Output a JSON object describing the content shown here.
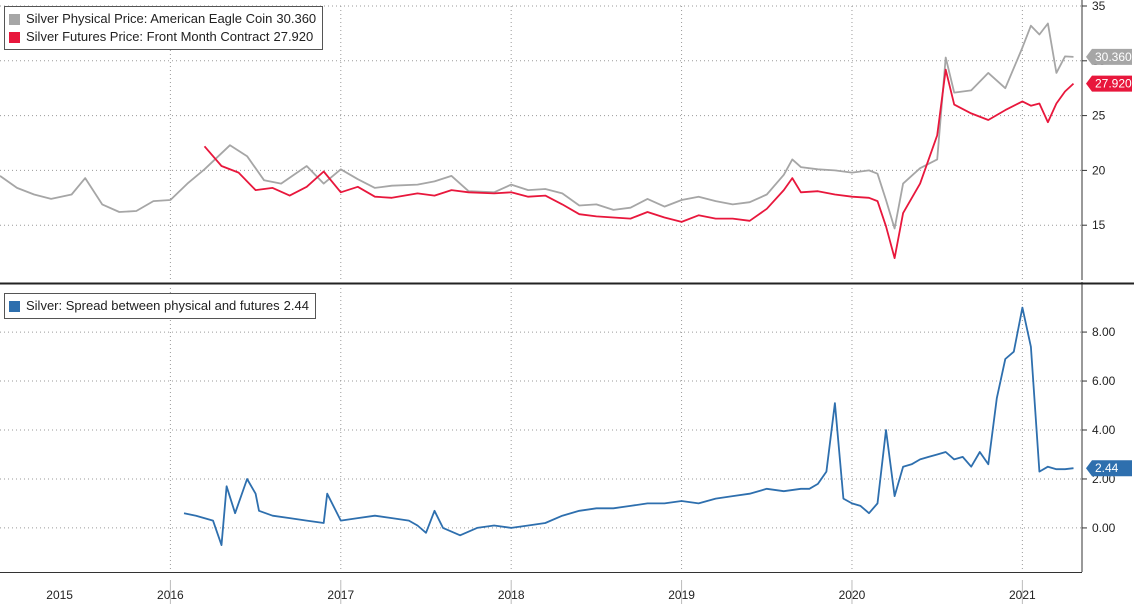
{
  "chart_data": [
    {
      "type": "line",
      "ylim": [
        10,
        35
      ],
      "yticks": [
        15,
        20,
        25,
        30,
        35
      ],
      "grid": true,
      "legend_position": "top-left",
      "series": [
        {
          "name": "Silver Physical Price: American Eagle Coin",
          "last_label": "30.360",
          "color": "#a6a6a6",
          "x": [
            2015.0,
            2015.1,
            2015.2,
            2015.3,
            2015.42,
            2015.5,
            2015.6,
            2015.7,
            2015.8,
            2015.9,
            2016.0,
            2016.1,
            2016.2,
            2016.35,
            2016.45,
            2016.55,
            2016.65,
            2016.8,
            2016.9,
            2017.0,
            2017.1,
            2017.2,
            2017.3,
            2017.45,
            2017.55,
            2017.65,
            2017.75,
            2017.9,
            2018.0,
            2018.1,
            2018.2,
            2018.3,
            2018.4,
            2018.5,
            2018.6,
            2018.7,
            2018.8,
            2018.9,
            2019.0,
            2019.1,
            2019.2,
            2019.3,
            2019.4,
            2019.5,
            2019.6,
            2019.65,
            2019.7,
            2019.8,
            2019.9,
            2020.0,
            2020.1,
            2020.15,
            2020.2,
            2020.25,
            2020.3,
            2020.4,
            2020.5,
            2020.55,
            2020.6,
            2020.7,
            2020.8,
            2020.9,
            2021.0,
            2021.05,
            2021.1,
            2021.15,
            2021.2,
            2021.25,
            2021.3
          ],
          "values": [
            19.5,
            18.4,
            17.8,
            17.4,
            17.8,
            19.3,
            16.9,
            16.2,
            16.3,
            17.2,
            17.3,
            18.8,
            20.1,
            22.3,
            21.3,
            19.1,
            18.8,
            20.4,
            18.8,
            20.1,
            19.2,
            18.4,
            18.6,
            18.7,
            19.0,
            19.5,
            18.1,
            18.0,
            18.7,
            18.2,
            18.3,
            17.9,
            16.8,
            16.9,
            16.4,
            16.6,
            17.4,
            16.7,
            17.3,
            17.6,
            17.2,
            16.9,
            17.1,
            17.8,
            19.6,
            21.0,
            20.3,
            20.1,
            20.0,
            19.8,
            20.0,
            19.7,
            17.3,
            14.7,
            18.8,
            20.2,
            21.0,
            30.3,
            27.1,
            27.3,
            28.9,
            27.5,
            31.2,
            33.2,
            32.4,
            33.4,
            28.9,
            30.4,
            30.36
          ]
        },
        {
          "name": "Silver Futures Price: Front Month Contract",
          "last_label": "27.920",
          "color": "#e8173c",
          "x": [
            2016.2,
            2016.3,
            2016.4,
            2016.5,
            2016.6,
            2016.7,
            2016.8,
            2016.9,
            2017.0,
            2017.1,
            2017.2,
            2017.3,
            2017.45,
            2017.55,
            2017.65,
            2017.75,
            2017.9,
            2018.0,
            2018.1,
            2018.2,
            2018.3,
            2018.4,
            2018.5,
            2018.6,
            2018.7,
            2018.8,
            2018.9,
            2019.0,
            2019.1,
            2019.2,
            2019.3,
            2019.4,
            2019.5,
            2019.6,
            2019.65,
            2019.7,
            2019.8,
            2019.9,
            2020.0,
            2020.1,
            2020.15,
            2020.2,
            2020.25,
            2020.3,
            2020.4,
            2020.5,
            2020.55,
            2020.6,
            2020.7,
            2020.8,
            2020.9,
            2021.0,
            2021.05,
            2021.1,
            2021.15,
            2021.2,
            2021.25,
            2021.3
          ],
          "values": [
            22.2,
            20.4,
            19.8,
            18.2,
            18.4,
            17.7,
            18.5,
            19.9,
            18.0,
            18.5,
            17.6,
            17.5,
            17.9,
            17.7,
            18.2,
            18.0,
            17.9,
            18.0,
            17.6,
            17.7,
            16.9,
            16.0,
            15.8,
            15.7,
            15.6,
            16.2,
            15.7,
            15.3,
            15.9,
            15.6,
            15.6,
            15.4,
            16.5,
            18.2,
            19.3,
            18.0,
            18.1,
            17.8,
            17.6,
            17.5,
            17.2,
            14.9,
            12.0,
            16.1,
            18.8,
            23.2,
            29.2,
            26.0,
            25.2,
            24.6,
            25.5,
            26.3,
            25.9,
            26.1,
            24.4,
            26.1,
            27.2,
            27.92
          ]
        }
      ]
    },
    {
      "type": "line",
      "ylim": [
        -1.8,
        9.8
      ],
      "yticks": [
        0.0,
        2.0,
        4.0,
        6.0,
        8.0
      ],
      "ytick_labels": [
        "0.00",
        "2.00",
        "4.00",
        "6.00",
        "8.00"
      ],
      "grid": true,
      "legend_position": "top-left",
      "series": [
        {
          "name": "Silver: Spread between physical and futures",
          "last_label": "2.44",
          "color": "#2e6fae",
          "x": [
            2016.08,
            2016.15,
            2016.25,
            2016.3,
            2016.33,
            2016.38,
            2016.45,
            2016.5,
            2016.52,
            2016.6,
            2016.7,
            2016.8,
            2016.9,
            2016.92,
            2017.0,
            2017.1,
            2017.2,
            2017.3,
            2017.4,
            2017.45,
            2017.5,
            2017.55,
            2017.6,
            2017.7,
            2017.8,
            2017.9,
            2018.0,
            2018.1,
            2018.2,
            2018.3,
            2018.4,
            2018.5,
            2018.6,
            2018.7,
            2018.8,
            2018.9,
            2019.0,
            2019.1,
            2019.2,
            2019.3,
            2019.4,
            2019.5,
            2019.6,
            2019.7,
            2019.75,
            2019.8,
            2019.85,
            2019.9,
            2019.95,
            2020.0,
            2020.05,
            2020.1,
            2020.15,
            2020.2,
            2020.25,
            2020.3,
            2020.35,
            2020.4,
            2020.45,
            2020.5,
            2020.55,
            2020.6,
            2020.65,
            2020.7,
            2020.75,
            2020.8,
            2020.85,
            2020.9,
            2020.95,
            2021.0,
            2021.05,
            2021.1,
            2021.15,
            2021.2,
            2021.25,
            2021.3
          ],
          "values": [
            0.6,
            0.5,
            0.3,
            -0.7,
            1.7,
            0.6,
            2.0,
            1.4,
            0.7,
            0.5,
            0.4,
            0.3,
            0.2,
            1.4,
            0.3,
            0.4,
            0.5,
            0.4,
            0.3,
            0.1,
            -0.2,
            0.7,
            0.0,
            -0.3,
            0.0,
            0.1,
            0.0,
            0.1,
            0.2,
            0.5,
            0.7,
            0.8,
            0.8,
            0.9,
            1.0,
            1.0,
            1.1,
            1.0,
            1.2,
            1.3,
            1.4,
            1.6,
            1.5,
            1.6,
            1.6,
            1.8,
            2.3,
            5.1,
            1.2,
            1.0,
            0.9,
            0.6,
            1.0,
            4.0,
            1.3,
            2.5,
            2.6,
            2.8,
            2.9,
            3.0,
            3.1,
            2.8,
            2.9,
            2.5,
            3.1,
            2.6,
            5.3,
            6.9,
            7.2,
            9.0,
            7.4,
            2.3,
            2.5,
            2.4,
            2.4,
            2.44
          ]
        }
      ]
    }
  ],
  "x_axis": {
    "range": [
      2015.0,
      2021.35
    ],
    "boundaries": [
      2016.0,
      2017.0,
      2018.0,
      2019.0,
      2020.0,
      2021.0
    ],
    "year_labels": [
      {
        "text": "2015",
        "mid": 2015.35
      },
      {
        "text": "2016",
        "mid": 2016.0
      },
      {
        "text": "2017",
        "mid": 2017.0
      },
      {
        "text": "2018",
        "mid": 2018.0
      },
      {
        "text": "2019",
        "mid": 2019.0
      },
      {
        "text": "2020",
        "mid": 2020.0
      },
      {
        "text": "2021",
        "mid": 2021.0
      }
    ]
  }
}
